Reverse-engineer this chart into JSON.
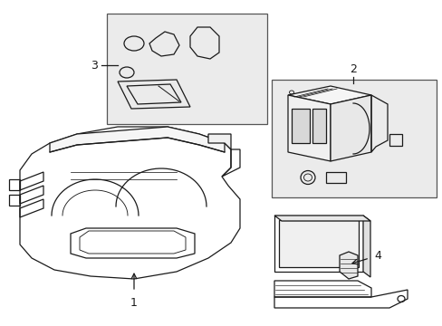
{
  "bg_color": "#ffffff",
  "line_color": "#1a1a1a",
  "box_bg": "#ebebeb",
  "figsize": [
    4.89,
    3.6
  ],
  "dpi": 100
}
